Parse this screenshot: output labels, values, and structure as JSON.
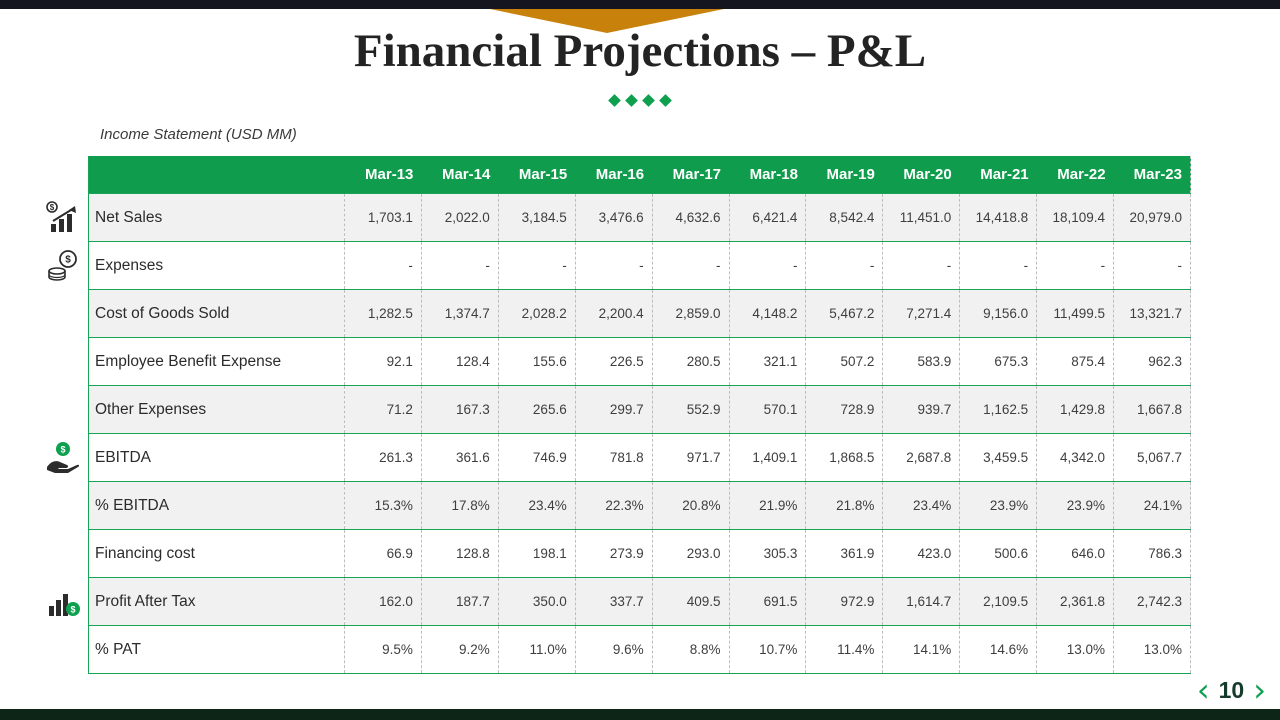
{
  "slide": {
    "title": "Financial Projections – P&L",
    "caption": "Income Statement (USD MM)",
    "page_number": "10",
    "pager_prev": "‹",
    "pager_next": "›"
  },
  "colors": {
    "accent_green": "#0FA04F",
    "accent_orange": "#C8820B",
    "top_bar": "#14151F",
    "bottom_bar": "#0C2517",
    "header_green": "#0F9D4D",
    "alt_row_gray": "#F1F1F1"
  },
  "table": {
    "columns": [
      "Mar-13",
      "Mar-14",
      "Mar-15",
      "Mar-16",
      "Mar-17",
      "Mar-18",
      "Mar-19",
      "Mar-20",
      "Mar-21",
      "Mar-22",
      "Mar-23"
    ],
    "rows": [
      {
        "label": "Net Sales",
        "icon": "sales-growth-chart-icon",
        "values": [
          "1,703.1",
          "2,022.0",
          "3,184.5",
          "3,476.6",
          "4,632.6",
          "6,421.4",
          "8,542.4",
          "11,451.0",
          "14,418.8",
          "18,109.4",
          "20,979.0"
        ]
      },
      {
        "label": "Expenses",
        "icon": "money-coins-icon",
        "values": [
          "-",
          "-",
          "-",
          "-",
          "-",
          "-",
          "-",
          "-",
          "-",
          "-",
          "-"
        ]
      },
      {
        "label": "Cost of Goods Sold",
        "icon": null,
        "values": [
          "1,282.5",
          "1,374.7",
          "2,028.2",
          "2,200.4",
          "2,859.0",
          "4,148.2",
          "5,467.2",
          "7,271.4",
          "9,156.0",
          "11,499.5",
          "13,321.7"
        ]
      },
      {
        "label": "Employee Benefit Expense",
        "icon": null,
        "values": [
          "92.1",
          "128.4",
          "155.6",
          "226.5",
          "280.5",
          "321.1",
          "507.2",
          "583.9",
          "675.3",
          "875.4",
          "962.3"
        ]
      },
      {
        "label": "Other Expenses",
        "icon": null,
        "values": [
          "71.2",
          "167.3",
          "265.6",
          "299.7",
          "552.9",
          "570.1",
          "728.9",
          "939.7",
          "1,162.5",
          "1,429.8",
          "1,667.8"
        ]
      },
      {
        "label": "EBITDA",
        "icon": "hand-coin-icon",
        "values": [
          "261.3",
          "361.6",
          "746.9",
          "781.8",
          "971.7",
          "1,409.1",
          "1,868.5",
          "2,687.8",
          "3,459.5",
          "4,342.0",
          "5,067.7"
        ]
      },
      {
        "label": "% EBITDA",
        "icon": null,
        "values": [
          "15.3%",
          "17.8%",
          "23.4%",
          "22.3%",
          "20.8%",
          "21.9%",
          "21.8%",
          "23.4%",
          "23.9%",
          "23.9%",
          "24.1%"
        ]
      },
      {
        "label": "Financing cost",
        "icon": null,
        "values": [
          "66.9",
          "128.8",
          "198.1",
          "273.9",
          "293.0",
          "305.3",
          "361.9",
          "423.0",
          "500.6",
          "646.0",
          "786.3"
        ]
      },
      {
        "label": "Profit After Tax",
        "icon": "bar-chart-dollar-icon",
        "values": [
          "162.0",
          "187.7",
          "350.0",
          "337.7",
          "409.5",
          "691.5",
          "972.9",
          "1,614.7",
          "2,109.5",
          "2,361.8",
          "2,742.3"
        ]
      },
      {
        "label": "% PAT",
        "icon": null,
        "values": [
          "9.5%",
          "9.2%",
          "11.0%",
          "9.6%",
          "8.8%",
          "10.7%",
          "11.4%",
          "14.1%",
          "14.6%",
          "13.0%",
          "13.0%"
        ]
      }
    ]
  }
}
